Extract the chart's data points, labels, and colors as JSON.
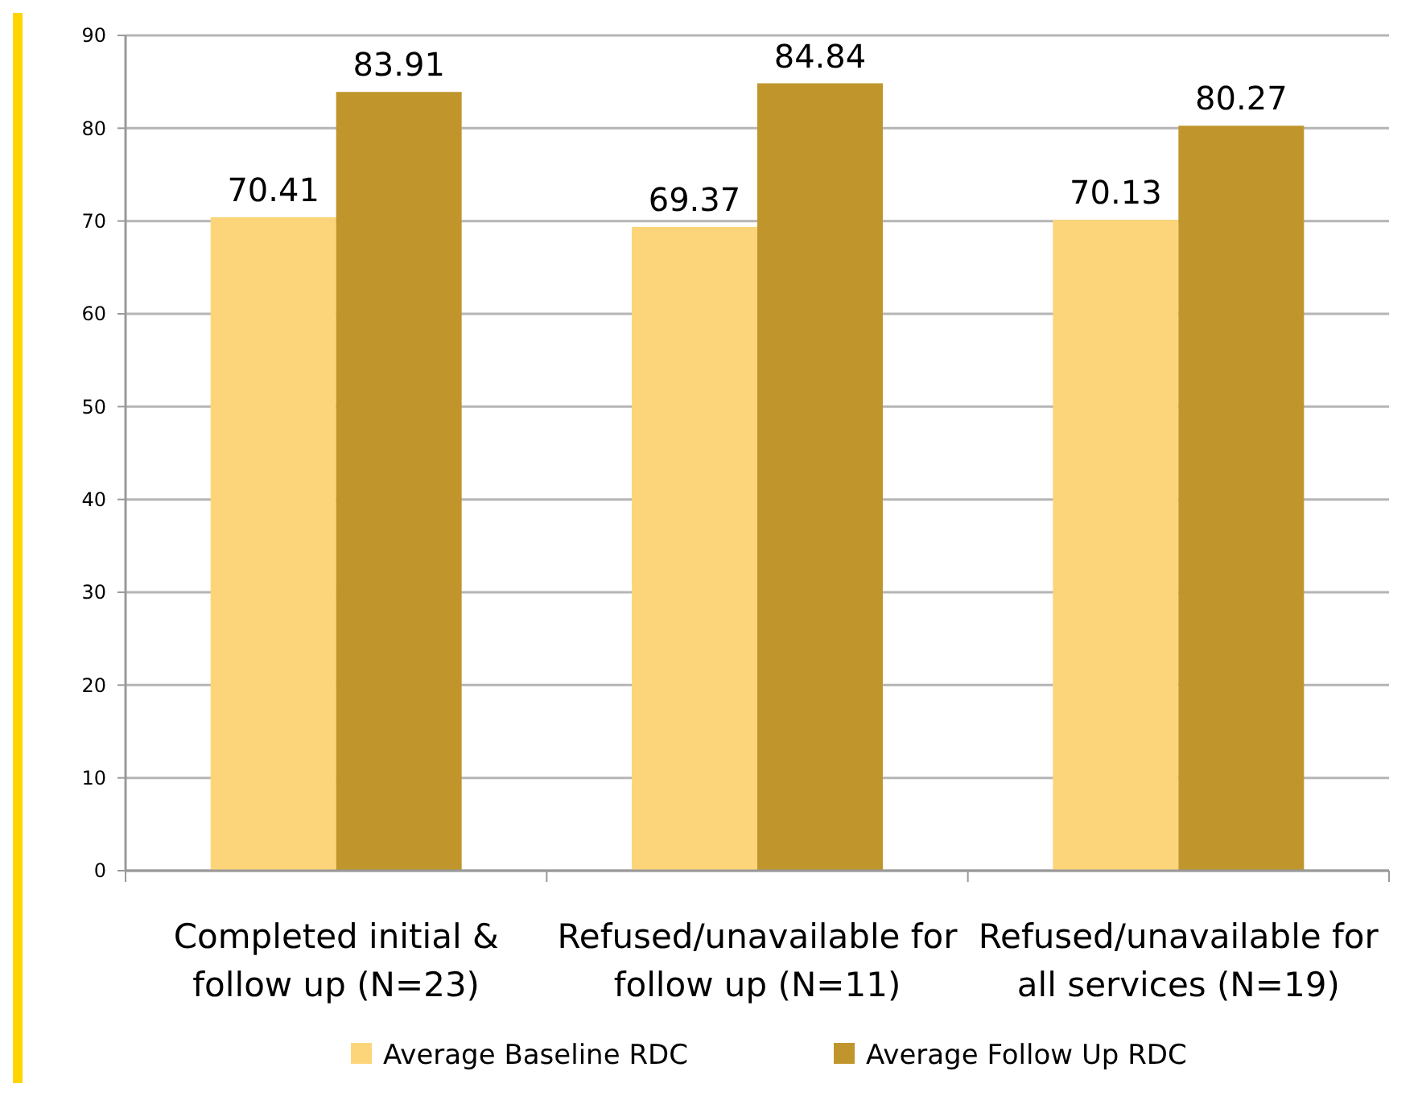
{
  "chart_data": {
    "type": "bar",
    "categories": [
      "Completed initial & follow up (N=23)",
      "Refused/unavailable for follow up (N=11)",
      "Refused/unavailable for all services (N=19)"
    ],
    "series": [
      {
        "name": "Average Baseline RDC",
        "color": "#fcd57b",
        "values": [
          70.41,
          69.37,
          70.13
        ]
      },
      {
        "name": "Average Follow Up RDC",
        "color": "#c0962c",
        "values": [
          83.91,
          84.84,
          80.27
        ]
      }
    ],
    "ylim": [
      0,
      90
    ],
    "yticks": [
      0,
      10,
      20,
      30,
      40,
      50,
      60,
      70,
      80,
      90
    ],
    "grid": "y",
    "data_labels": true,
    "legend": "bottom"
  }
}
